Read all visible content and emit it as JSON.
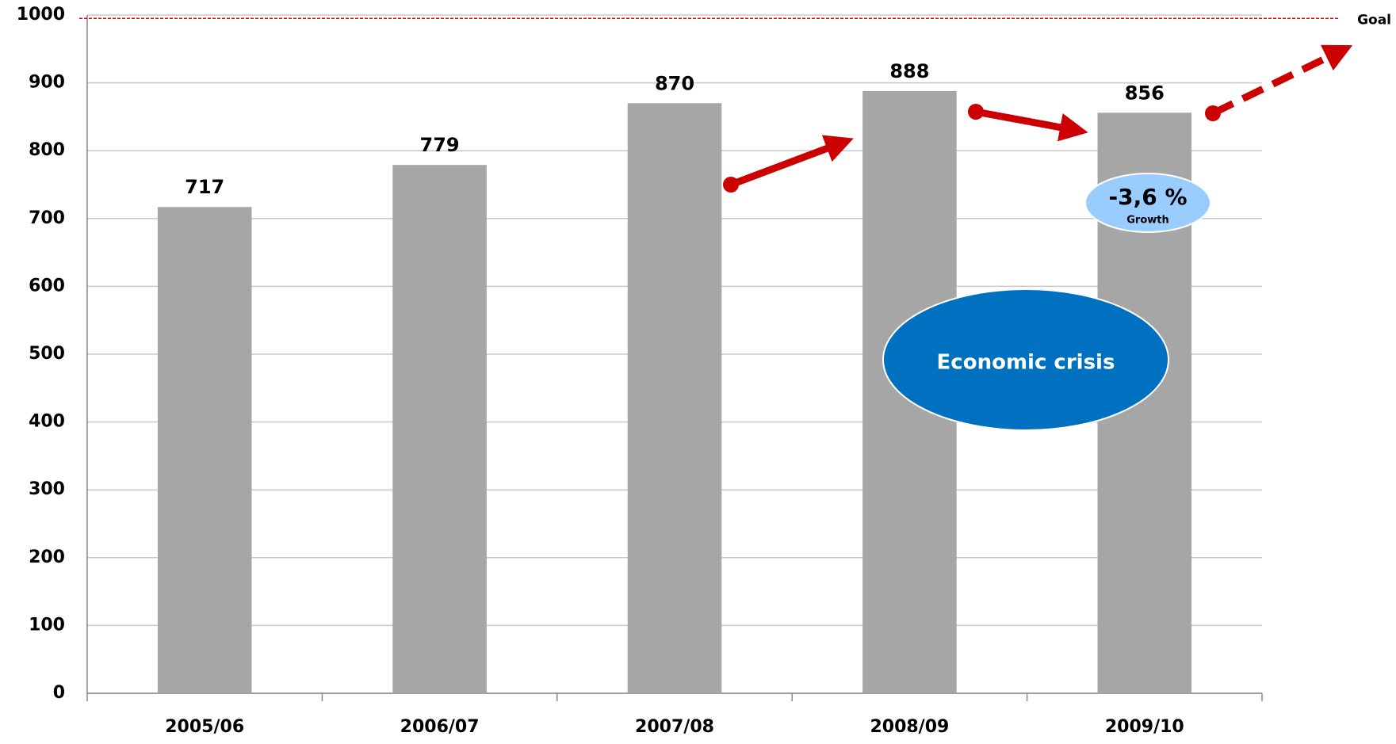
{
  "chart_data": {
    "type": "bar",
    "categories": [
      "2005/06",
      "2006/07",
      "2007/08",
      "2008/09",
      "2009/10"
    ],
    "values": [
      717,
      779,
      870,
      888,
      856
    ],
    "color": "#a6a6a6",
    "ylim": [
      0,
      1000
    ],
    "yticks": [
      0,
      100,
      200,
      300,
      400,
      500,
      600,
      700,
      800,
      900,
      1000
    ],
    "grid": true,
    "goal": {
      "value": 995,
      "label": "Goal",
      "color": "#e00000"
    },
    "annotations": {
      "growth_value": "-3,6 %",
      "growth_label": "Growth",
      "crisis": "Economic crisis"
    }
  }
}
